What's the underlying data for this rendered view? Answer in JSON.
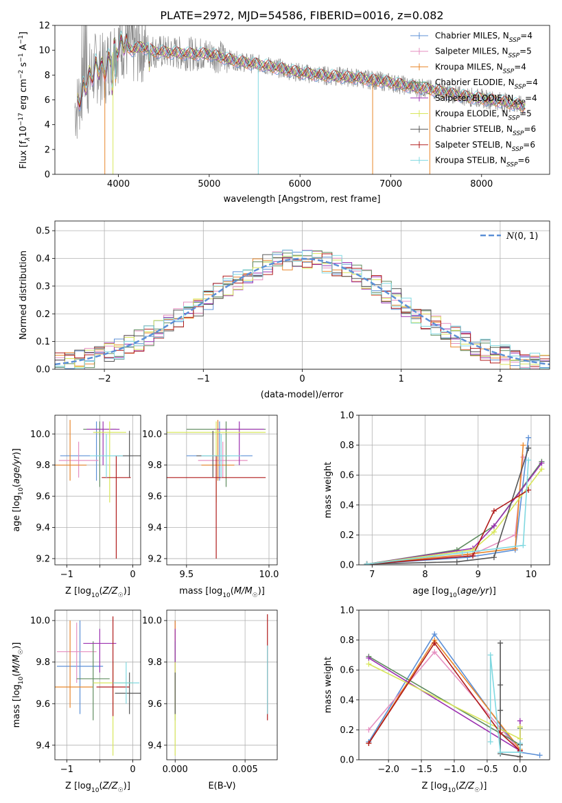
{
  "figure": {
    "title": "PLATE=2972, MJD=54586, FIBERID=0016, z=0.082"
  },
  "colors": {
    "chabrier_miles": "#5b8fd6",
    "salpeter_miles": "#e58fc0",
    "kroupa_miles": "#e8862a",
    "chabrier_elodie": "#5f8c5f",
    "salpeter_elodie": "#9b30b0",
    "kroupa_elodie": "#d8e65a",
    "chabrier_stelib": "#555555",
    "salpeter_stelib": "#b01a1a",
    "kroupa_stelib": "#7fd8e0",
    "gauss": "#5b8fd6",
    "grid": "#b0b0b0"
  },
  "chart_data": [
    {
      "id": "spectrum",
      "type": "line",
      "xlabel": "wavelength [Angstrom, rest frame]",
      "ylabel": "Flux [f",
      "ylabel_rest": "10",
      "ylabel_exp": "−17",
      "ylabel_units": " erg cm",
      "xlim": [
        3300,
        8750
      ],
      "ylim": [
        0,
        12
      ],
      "xticks": [
        4000,
        5000,
        6000,
        7000,
        8000
      ],
      "yticks": [
        0,
        2,
        4,
        6,
        8,
        10,
        12
      ],
      "grid": false,
      "legend_position": "upper right",
      "spectrum_anchors": {
        "x": [
          3550,
          3650,
          3750,
          3850,
          3950,
          4050,
          4150,
          4250,
          4400,
          4600,
          4800,
          5000,
          5200,
          5400,
          5600,
          5800,
          6000,
          6200,
          6400,
          6600,
          6800,
          7000,
          7200,
          7400,
          7600,
          7800,
          8000,
          8200,
          8400,
          8500
        ],
        "y": [
          5.8,
          7.4,
          8.6,
          8.4,
          10.0,
          10.6,
          10.0,
          10.3,
          9.9,
          9.8,
          9.7,
          9.7,
          9.3,
          9.0,
          8.8,
          8.5,
          8.2,
          8.0,
          7.9,
          7.8,
          7.6,
          7.4,
          7.1,
          6.9,
          6.6,
          6.3,
          6.1,
          5.9,
          5.6,
          5.4
        ]
      },
      "legend": [
        {
          "label": "Chabrier MILES, N",
          "sub": "SSP",
          "tail": "=4",
          "color": "#5b8fd6"
        },
        {
          "label": "Salpeter MILES, N",
          "sub": "SSP",
          "tail": "=5",
          "color": "#e58fc0"
        },
        {
          "label": "Kroupa MILES, N",
          "sub": "SSP",
          "tail": "=4",
          "color": "#e8862a"
        },
        {
          "label": "Chabrier ELODIE, N",
          "sub": "SSP",
          "tail": "=4",
          "color": "#5f8c5f"
        },
        {
          "label": "Salpeter ELODIE, N",
          "sub": "SSP",
          "tail": "=4",
          "color": "#9b30b0"
        },
        {
          "label": "Kroupa ELODIE, N",
          "sub": "SSP",
          "tail": "=5",
          "color": "#d8e65a"
        },
        {
          "label": "Chabrier STELIB, N",
          "sub": "SSP",
          "tail": "=6",
          "color": "#555555"
        },
        {
          "label": "Salpeter STELIB, N",
          "sub": "SSP",
          "tail": "=6",
          "color": "#b01a1a"
        },
        {
          "label": "Kroupa STELIB, N",
          "sub": "SSP",
          "tail": "=6",
          "color": "#7fd8e0"
        }
      ]
    },
    {
      "id": "residuals",
      "type": "line",
      "xlabel": "(data-model)/error",
      "ylabel": "Normed distribution",
      "xlim": [
        -2.5,
        2.5
      ],
      "ylim": [
        0,
        0.535
      ],
      "xticks": [
        -2,
        -1,
        0,
        1,
        2
      ],
      "yticks": [
        0.0,
        0.1,
        0.2,
        0.3,
        0.4,
        0.5
      ],
      "grid": true,
      "legend_position": "upper right",
      "legend": [
        {
          "label": "N(0,1)",
          "color": "#5b8fd6"
        }
      ],
      "bin_width": 0.1,
      "series_colors": [
        "#5b8fd6",
        "#e58fc0",
        "#e8862a",
        "#5f8c5f",
        "#9b30b0",
        "#d8e65a",
        "#555555",
        "#b01a1a",
        "#7fd8e0"
      ]
    },
    {
      "id": "age_vs_Z",
      "type": "scatter",
      "xlabel": "Z [log",
      "ylabel": "age  [log",
      "xlim": [
        -1.18,
        0.12
      ],
      "ylim": [
        9.16,
        10.12
      ],
      "xticks": [
        -1,
        -0.5,
        0
      ],
      "xticklabels": [
        "−1",
        "",
        "0"
      ],
      "yticks": [
        9.2,
        9.4,
        9.6,
        9.8,
        10.0
      ],
      "grid": true,
      "points": [
        {
          "x": -0.55,
          "xerr": 0.55,
          "y": 9.86,
          "ylo": 9.7,
          "yhi": 10.08,
          "color": "#5b8fd6"
        },
        {
          "x": -0.82,
          "xerr": 0.3,
          "y": 9.83,
          "ylo": 9.72,
          "yhi": 9.95,
          "color": "#e58fc0"
        },
        {
          "x": -0.95,
          "xerr": 0.25,
          "y": 9.8,
          "ylo": 9.7,
          "yhi": 10.09,
          "color": "#e8862a"
        },
        {
          "x": -0.5,
          "xerr": 0.25,
          "y": 10.03,
          "ylo": 9.66,
          "yhi": 10.08,
          "color": "#5f8c5f"
        },
        {
          "x": -0.45,
          "xerr": 0.25,
          "y": 10.03,
          "ylo": 9.8,
          "yhi": 10.08,
          "color": "#9b30b0"
        },
        {
          "x": -0.35,
          "xerr": 0.25,
          "y": 10.01,
          "ylo": 9.56,
          "yhi": 10.08,
          "color": "#d8e65a"
        },
        {
          "x": -0.05,
          "xerr": 0.22,
          "y": 9.86,
          "ylo": 9.72,
          "yhi": 10.02,
          "color": "#555555"
        },
        {
          "x": -0.25,
          "xerr": 0.22,
          "y": 9.72,
          "ylo": 9.2,
          "yhi": 9.86,
          "color": "#b01a1a"
        },
        {
          "x": -0.4,
          "xerr": 0.25,
          "y": 9.86,
          "ylo": 9.72,
          "yhi": 10.0,
          "color": "#7fd8e0"
        }
      ]
    },
    {
      "id": "age_vs_mass",
      "type": "scatter",
      "xlabel": "mass [log",
      "ylabel": "",
      "xlim": [
        9.38,
        10.05
      ],
      "ylim": [
        9.16,
        10.12
      ],
      "xticks": [
        9.5,
        10.0
      ],
      "xticklabels": [
        "9.5",
        "10.0"
      ],
      "yticks": [
        9.2,
        9.4,
        9.6,
        9.8,
        10.0
      ],
      "grid": true,
      "points": [
        {
          "x": 9.7,
          "xerr": 0.2,
          "y": 9.86,
          "ylo": 9.7,
          "yhi": 10.08,
          "color": "#5b8fd6"
        },
        {
          "x": 9.72,
          "xerr": 0.15,
          "y": 9.83,
          "ylo": 9.72,
          "yhi": 9.95,
          "color": "#e58fc0"
        },
        {
          "x": 9.69,
          "xerr": 0.1,
          "y": 9.8,
          "ylo": 9.7,
          "yhi": 10.09,
          "color": "#e8862a"
        },
        {
          "x": 9.74,
          "xerr": 0.24,
          "y": 10.03,
          "ylo": 9.66,
          "yhi": 10.08,
          "color": "#5f8c5f"
        },
        {
          "x": 9.82,
          "xerr": 0.15,
          "y": 10.03,
          "ylo": 9.8,
          "yhi": 10.08,
          "color": "#9b30b0"
        },
        {
          "x": 9.68,
          "xerr": 0.3,
          "y": 10.01,
          "ylo": 9.56,
          "yhi": 10.08,
          "color": "#d8e65a"
        },
        {
          "x": 9.66,
          "xerr": 0.1,
          "y": 9.86,
          "ylo": 9.72,
          "yhi": 10.02,
          "color": "#555555"
        },
        {
          "x": 9.68,
          "xerr": 0.3,
          "y": 9.72,
          "ylo": 9.2,
          "yhi": 9.86,
          "color": "#b01a1a"
        },
        {
          "x": 9.71,
          "xerr": 0.12,
          "y": 9.86,
          "ylo": 9.72,
          "yhi": 10.0,
          "color": "#7fd8e0"
        }
      ]
    },
    {
      "id": "mass_vs_Z",
      "type": "scatter",
      "xlabel": "Z [log",
      "ylabel": "mass [log",
      "xlim": [
        -1.18,
        0.12
      ],
      "ylim": [
        9.33,
        10.05
      ],
      "xticks": [
        -1,
        -0.5,
        0
      ],
      "xticklabels": [
        "−1",
        "",
        "0"
      ],
      "yticks": [
        9.4,
        9.6,
        9.8,
        10.0
      ],
      "grid": true,
      "points": [
        {
          "x": -0.8,
          "xerr": 0.35,
          "y": 9.78,
          "ylo": 9.55,
          "yhi": 10.0,
          "color": "#5b8fd6"
        },
        {
          "x": -0.85,
          "xerr": 0.3,
          "y": 9.85,
          "ylo": 9.7,
          "yhi": 9.99,
          "color": "#e58fc0"
        },
        {
          "x": -0.95,
          "xerr": 0.35,
          "y": 9.68,
          "ylo": 9.58,
          "yhi": 10.0,
          "color": "#e8862a"
        },
        {
          "x": -0.6,
          "xerr": 0.25,
          "y": 9.72,
          "ylo": 9.52,
          "yhi": 9.9,
          "color": "#5f8c5f"
        },
        {
          "x": -0.5,
          "xerr": 0.25,
          "y": 9.89,
          "ylo": 9.75,
          "yhi": 9.96,
          "color": "#9b30b0"
        },
        {
          "x": -0.3,
          "xerr": 0.3,
          "y": 9.7,
          "ylo": 9.35,
          "yhi": 9.8,
          "color": "#d8e65a"
        },
        {
          "x": -0.05,
          "xerr": 0.22,
          "y": 9.65,
          "ylo": 9.55,
          "yhi": 9.75,
          "color": "#555555"
        },
        {
          "x": -0.3,
          "xerr": 0.25,
          "y": 9.68,
          "ylo": 9.54,
          "yhi": 10.02,
          "color": "#b01a1a"
        },
        {
          "x": -0.1,
          "xerr": 0.2,
          "y": 9.7,
          "ylo": 9.6,
          "yhi": 9.8,
          "color": "#7fd8e0"
        }
      ]
    },
    {
      "id": "mass_vs_EBV",
      "type": "scatter",
      "xlabel": "E(B-V)",
      "ylabel": "",
      "xlim": [
        -0.0006,
        0.0073
      ],
      "ylim": [
        9.33,
        10.05
      ],
      "xticks": [
        0.0,
        0.005
      ],
      "xticklabels": [
        "0.000",
        "0.005"
      ],
      "yticks": [
        9.4,
        9.6,
        9.8,
        10.0
      ],
      "grid": true,
      "points": [
        {
          "x": 0.0,
          "xerr": 0,
          "y": 9.78,
          "ylo": 9.55,
          "yhi": 10.0,
          "color": "#5b8fd6"
        },
        {
          "x": 0.0,
          "xerr": 0,
          "y": 9.85,
          "ylo": 9.7,
          "yhi": 9.99,
          "color": "#e58fc0"
        },
        {
          "x": 0.0,
          "xerr": 0,
          "y": 9.68,
          "ylo": 9.58,
          "yhi": 10.0,
          "color": "#e8862a"
        },
        {
          "x": 0.0,
          "xerr": 0,
          "y": 9.72,
          "ylo": 9.52,
          "yhi": 9.9,
          "color": "#5f8c5f"
        },
        {
          "x": 0.0,
          "xerr": 0,
          "y": 9.89,
          "ylo": 9.75,
          "yhi": 9.96,
          "color": "#9b30b0"
        },
        {
          "x": 0.0,
          "xerr": 0,
          "y": 9.7,
          "ylo": 9.35,
          "yhi": 9.8,
          "color": "#d8e65a"
        },
        {
          "x": 0.0,
          "xerr": 0,
          "y": 9.65,
          "ylo": 9.55,
          "yhi": 9.75,
          "color": "#555555"
        },
        {
          "x": 0.0066,
          "xerr": 0,
          "y": 9.68,
          "ylo": 9.52,
          "yhi": 10.03,
          "color": "#b01a1a"
        },
        {
          "x": 0.0066,
          "xerr": 0,
          "y": 9.7,
          "ylo": 9.55,
          "yhi": 9.88,
          "color": "#7fd8e0"
        }
      ]
    },
    {
      "id": "massweight_vs_age",
      "type": "line",
      "xlabel": "age  [log",
      "ylabel": "mass weight",
      "xlim": [
        6.75,
        10.35
      ],
      "ylim": [
        0,
        1.0
      ],
      "xticks": [
        7,
        8,
        9,
        10
      ],
      "yticks": [
        0.0,
        0.2,
        0.4,
        0.6,
        0.8,
        1.0
      ],
      "grid": true,
      "series": [
        {
          "name": "Chabrier MILES",
          "color": "#5b8fd6",
          "x": [
            6.9,
            8.8,
            9.7,
            9.95
          ],
          "y": [
            0.005,
            0.05,
            0.1,
            0.85
          ]
        },
        {
          "name": "Salpeter MILES",
          "color": "#e58fc0",
          "x": [
            6.9,
            8.9,
            9.7,
            9.85
          ],
          "y": [
            0.005,
            0.07,
            0.2,
            0.72
          ]
        },
        {
          "name": "Kroupa MILES",
          "color": "#e8862a",
          "x": [
            6.9,
            8.8,
            9.7,
            9.85
          ],
          "y": [
            0.005,
            0.07,
            0.11,
            0.8
          ]
        },
        {
          "name": "Chabrier ELODIE",
          "color": "#5f8c5f",
          "x": [
            6.9,
            8.6,
            9.3,
            10.2
          ],
          "y": [
            0.005,
            0.1,
            0.26,
            0.69
          ]
        },
        {
          "name": "Salpeter ELODIE",
          "color": "#9b30b0",
          "x": [
            6.9,
            8.9,
            9.3,
            10.2
          ],
          "y": [
            0.005,
            0.11,
            0.26,
            0.68
          ]
        },
        {
          "name": "Kroupa ELODIE",
          "color": "#d8e65a",
          "x": [
            6.9,
            8.9,
            9.3,
            10.2
          ],
          "y": [
            0.005,
            0.1,
            0.22,
            0.64
          ]
        },
        {
          "name": "Chabrier STELIB",
          "color": "#555555",
          "x": [
            6.9,
            8.6,
            9.3,
            9.95
          ],
          "y": [
            0.005,
            0.02,
            0.05,
            0.78
          ]
        },
        {
          "name": "Salpeter STELIB",
          "color": "#b01a1a",
          "x": [
            6.9,
            8.9,
            9.3,
            9.95
          ],
          "y": [
            0.005,
            0.06,
            0.36,
            0.5
          ]
        },
        {
          "name": "Kroupa STELIB",
          "color": "#7fd8e0",
          "x": [
            6.9,
            8.7,
            9.85,
            9.95
          ],
          "y": [
            0.005,
            0.08,
            0.13,
            0.7
          ]
        }
      ]
    },
    {
      "id": "massweight_vs_Z",
      "type": "line",
      "xlabel": "Z [log",
      "ylabel": "mass weight",
      "xlim": [
        -2.45,
        0.45
      ],
      "ylim": [
        0,
        1.0
      ],
      "xticks": [
        -2.0,
        -1.5,
        -1.0,
        -0.5,
        0.0
      ],
      "xticklabels": [
        "−2.0",
        "−1.5",
        "−1.0",
        "−0.5",
        "0.0"
      ],
      "yticks": [
        0.0,
        0.2,
        0.4,
        0.6,
        0.8,
        1.0
      ],
      "grid": true,
      "series": [
        {
          "name": "Chabrier MILES",
          "color": "#5b8fd6",
          "x": [
            -2.3,
            -1.3,
            0.0,
            0.3
          ],
          "y": [
            0.12,
            0.84,
            0.05,
            0.03
          ]
        },
        {
          "name": "Salpeter MILES",
          "color": "#e58fc0",
          "x": [
            -2.3,
            -1.3,
            0.0,
            0.0
          ],
          "y": [
            0.2,
            0.72,
            0.06,
            0.02
          ]
        },
        {
          "name": "Kroupa MILES",
          "color": "#e8862a",
          "x": [
            -2.3,
            -1.3,
            0.0,
            0.0
          ],
          "y": [
            0.11,
            0.8,
            0.07,
            0.02
          ]
        },
        {
          "name": "Chabrier ELODIE",
          "color": "#5f8c5f",
          "x": [
            -2.3,
            0.0,
            0.0
          ],
          "y": [
            0.69,
            0.1,
            0.21
          ]
        },
        {
          "name": "Salpeter ELODIE",
          "color": "#9b30b0",
          "x": [
            -2.3,
            0.0,
            0.0
          ],
          "y": [
            0.68,
            0.06,
            0.26
          ]
        },
        {
          "name": "Kroupa ELODIE",
          "color": "#d8e65a",
          "x": [
            -2.3,
            0.0,
            0.0
          ],
          "y": [
            0.64,
            0.14,
            0.22
          ]
        },
        {
          "name": "Chabrier STELIB",
          "color": "#555555",
          "x": [
            -0.3,
            -0.3,
            -0.3,
            -0.3,
            0.0,
            0.0
          ],
          "y": [
            0.78,
            0.5,
            0.33,
            0.04,
            0.02,
            0.1
          ]
        },
        {
          "name": "Salpeter STELIB",
          "color": "#b01a1a",
          "x": [
            -2.3,
            -1.3,
            -0.3,
            0.0
          ],
          "y": [
            0.11,
            0.78,
            0.18,
            0.06
          ]
        },
        {
          "name": "Kroupa STELIB",
          "color": "#7fd8e0",
          "x": [
            -0.45,
            -0.45,
            -0.3,
            0.0,
            0.0
          ],
          "y": [
            0.12,
            0.7,
            0.05,
            0.05,
            0.11
          ]
        }
      ]
    }
  ]
}
